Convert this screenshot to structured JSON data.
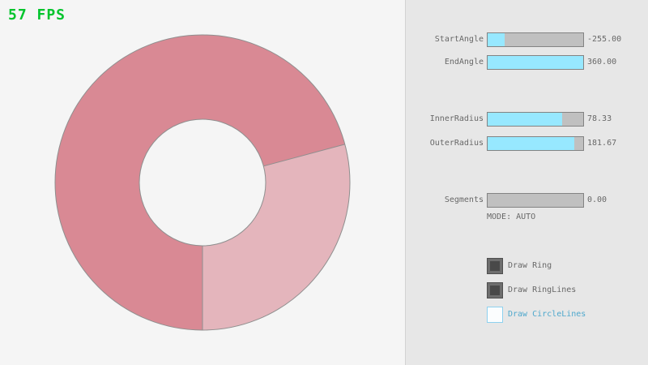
{
  "fps": {
    "label": "57 FPS",
    "color": "#00c42c"
  },
  "ring": {
    "color_overlap": "#d98994",
    "color_base": "#e4b5bc",
    "hole_color": "#f5f5f5",
    "line_color": "#8f8f8f",
    "start_angle": "-255.00",
    "end_angle": "360.00",
    "inner_radius": "78.33",
    "outer_radius": "181.67",
    "segments": "0.00"
  },
  "panel": {
    "sliders": [
      {
        "label": "StartAngle",
        "value": "-255.00",
        "fill_pct": 18
      },
      {
        "label": "EndAngle",
        "value": "360.00",
        "fill_pct": 100
      },
      {
        "label": "InnerRadius",
        "value": "78.33",
        "fill_pct": 78
      },
      {
        "label": "OuterRadius",
        "value": "181.67",
        "fill_pct": 91
      },
      {
        "label": "Segments",
        "value": "0.00",
        "fill_pct": 0
      }
    ],
    "mode_text": "MODE: AUTO",
    "checkboxes": [
      {
        "label": "Draw Ring",
        "checked": true
      },
      {
        "label": "Draw RingLines",
        "checked": true
      },
      {
        "label": "Draw CircleLines",
        "checked": false
      }
    ]
  }
}
